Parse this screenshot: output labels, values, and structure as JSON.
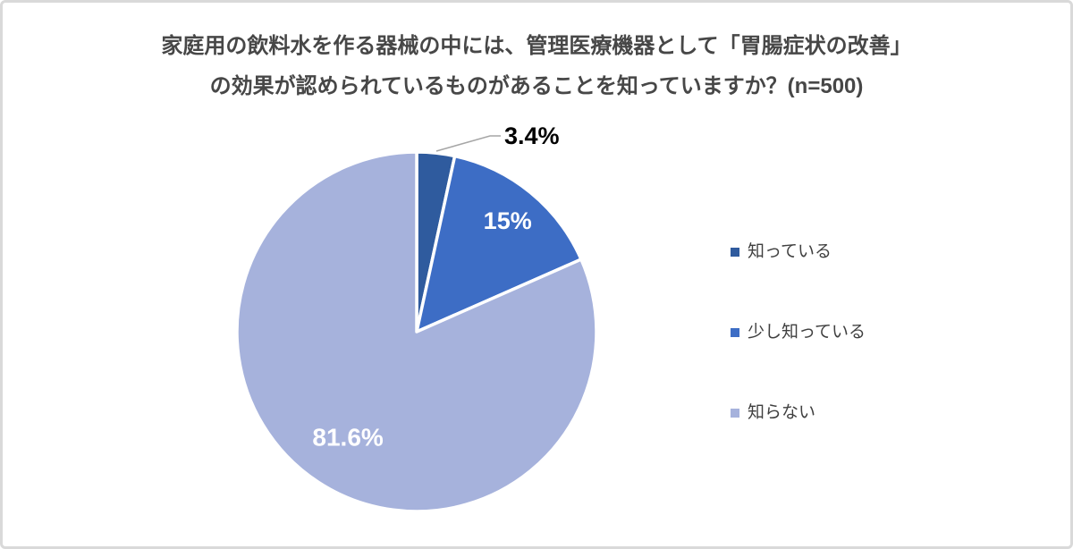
{
  "chart_data": {
    "type": "pie",
    "title": "家庭用の飲料水を作る器械の中には、管理医療機器として「胃腸症状の改善」の効果が認められているものがあることを知っていますか？(n=500)",
    "title_lines": [
      "家庭用の飲料水を作る器械の中には、管理医療機器として「胃腸症状の改善」",
      "の効果が認められているものがあることを知っていますか？(n=500)"
    ],
    "sample_size": 500,
    "slices": [
      {
        "label": "知っている",
        "value": 3.4,
        "data_label": "3.4%",
        "color": "#2F5B9E",
        "label_color": "#000000",
        "label_placement": "outside"
      },
      {
        "label": "少し知っている",
        "value": 15,
        "data_label": "15%",
        "color": "#3D6DC5",
        "label_color": "#FFFFFF",
        "label_placement": "inside"
      },
      {
        "label": "知らない",
        "value": 81.6,
        "data_label": "81.6%",
        "color": "#A6B2DC",
        "label_color": "#FFFFFF",
        "label_placement": "inside"
      }
    ],
    "start_angle_deg": 0,
    "direction": "clockwise",
    "legend_position": "right",
    "grid": false,
    "background_color": "#FFFFFF",
    "leader_line_color": "#A6A6A6"
  }
}
